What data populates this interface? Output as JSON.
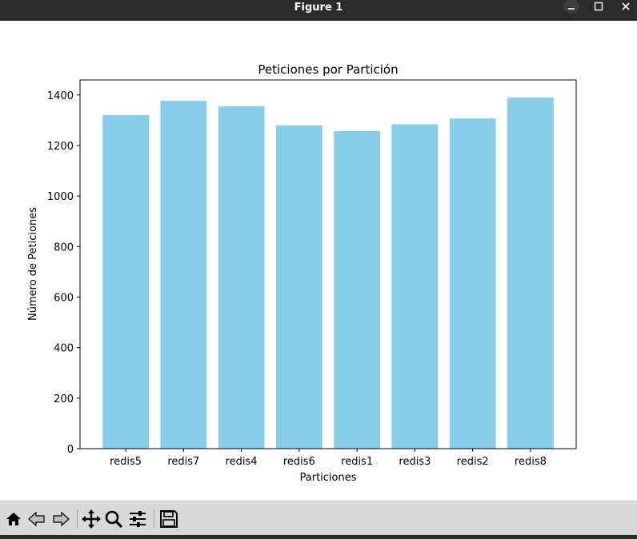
{
  "window": {
    "title": "Figure 1",
    "controls": [
      "minimize-icon",
      "maximize-icon",
      "close-icon"
    ]
  },
  "toolbar": {
    "buttons": [
      "home-icon",
      "back-icon",
      "forward-icon",
      "pan-icon",
      "zoom-icon",
      "configure-subplots-icon",
      "save-icon"
    ]
  },
  "chart_data": {
    "type": "bar",
    "title": "Peticiones por Partición",
    "xlabel": "Particiones",
    "ylabel": "Número de Peticiones",
    "categories": [
      "redis5",
      "redis7",
      "redis4",
      "redis6",
      "redis1",
      "redis3",
      "redis2",
      "redis8"
    ],
    "values": [
      1320,
      1377,
      1355,
      1279,
      1257,
      1284,
      1307,
      1390
    ],
    "ylim": [
      0,
      1459.5
    ],
    "yticks": [
      0,
      200,
      400,
      600,
      800,
      1000,
      1200,
      1400
    ],
    "bar_color": "#87ceeb",
    "grid": false
  }
}
